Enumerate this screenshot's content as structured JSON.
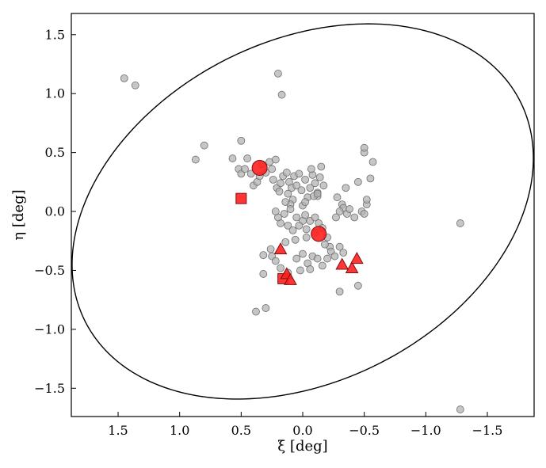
{
  "chart_data": {
    "type": "scatter",
    "title": "",
    "xlabel": "ξ [deg]",
    "ylabel": "η [deg]",
    "xlim": [
      1.88,
      -1.88
    ],
    "ylim": [
      -1.74,
      1.68
    ],
    "x_inverted": true,
    "grid": false,
    "x_ticks": [
      1.5,
      1.0,
      0.5,
      0.0,
      -0.5,
      -1.0,
      -1.5
    ],
    "x_tick_labels": [
      "1.5",
      "1.0",
      "0.5",
      "0.0",
      "−0.5",
      "−1.0",
      "−1.5"
    ],
    "y_ticks": [
      1.5,
      1.0,
      0.5,
      0.0,
      -0.5,
      -1.0,
      -1.5
    ],
    "y_tick_labels": [
      "1.5",
      "1.0",
      "0.5",
      "0.0",
      "−0.5",
      "−1.0",
      "−1.5"
    ],
    "colors": {
      "gray_points": "#b3b3b3",
      "red_points": "#ff2020",
      "ellipse": "#000000"
    },
    "ellipse": {
      "cx": 0.0,
      "cy": 0.0,
      "semi_major": 2.0,
      "semi_minor": 1.43,
      "angle_deg": -30.0
    },
    "series": [
      {
        "marker": "circle-gray",
        "points": [
          [
            1.45,
            1.13
          ],
          [
            1.36,
            1.07
          ],
          [
            0.2,
            1.17
          ],
          [
            0.17,
            0.99
          ],
          [
            0.87,
            0.44
          ],
          [
            0.8,
            0.56
          ],
          [
            0.57,
            0.45
          ],
          [
            0.5,
            0.6
          ],
          [
            0.52,
            0.36
          ],
          [
            0.5,
            0.32
          ],
          [
            0.47,
            0.36
          ],
          [
            0.45,
            0.45
          ],
          [
            0.42,
            0.32
          ],
          [
            0.4,
            0.22
          ],
          [
            0.37,
            0.25
          ],
          [
            0.35,
            0.3
          ],
          [
            0.33,
            0.4
          ],
          [
            0.3,
            0.33
          ],
          [
            0.27,
            0.42
          ],
          [
            0.25,
            0.36
          ],
          [
            0.22,
            0.44
          ],
          [
            0.24,
            0.27
          ],
          [
            0.21,
            0.2
          ],
          [
            0.18,
            0.24
          ],
          [
            0.16,
            0.3
          ],
          [
            0.19,
            0.17
          ],
          [
            0.13,
            0.33
          ],
          [
            0.11,
            0.25
          ],
          [
            0.09,
            0.2
          ],
          [
            0.12,
            0.15
          ],
          [
            0.07,
            0.3
          ],
          [
            0.05,
            0.22
          ],
          [
            0.03,
            0.32
          ],
          [
            0.01,
            0.18
          ],
          [
            -0.02,
            0.27
          ],
          [
            -0.04,
            0.12
          ],
          [
            -0.06,
            0.2
          ],
          [
            -0.08,
            0.31
          ],
          [
            -0.1,
            0.24
          ],
          [
            -0.12,
            0.16
          ],
          [
            -0.14,
            0.29
          ],
          [
            -0.07,
            0.36
          ],
          [
            -0.15,
            0.38
          ],
          [
            -0.17,
            0.22
          ],
          [
            0.08,
            0.1
          ],
          [
            0.0,
            0.05
          ],
          [
            -0.02,
            0.08
          ],
          [
            0.1,
            0.06
          ],
          [
            0.14,
            0.08
          ],
          [
            0.15,
            -0.02
          ],
          [
            0.1,
            0.02
          ],
          [
            0.05,
            -0.05
          ],
          [
            0.0,
            -0.08
          ],
          [
            -0.02,
            -0.03
          ],
          [
            -0.06,
            -0.08
          ],
          [
            -0.1,
            -0.05
          ],
          [
            0.12,
            -0.12
          ],
          [
            0.08,
            -0.16
          ],
          [
            0.03,
            -0.12
          ],
          [
            -0.03,
            -0.15
          ],
          [
            0.18,
            -0.1
          ],
          [
            0.2,
            -0.05
          ],
          [
            0.22,
            0.0
          ],
          [
            -0.13,
            -0.1
          ],
          [
            -0.16,
            -0.14
          ],
          [
            -0.2,
            -0.22
          ],
          [
            -0.22,
            -0.3
          ],
          [
            -0.18,
            -0.28
          ],
          [
            -0.12,
            0.13
          ],
          [
            -0.09,
            0.13
          ],
          [
            -0.1,
            -0.18
          ],
          [
            -0.03,
            -0.22
          ],
          [
            0.06,
            -0.24
          ],
          [
            0.14,
            -0.26
          ],
          [
            0.25,
            -0.38
          ],
          [
            0.22,
            -0.42
          ],
          [
            0.18,
            -0.48
          ],
          [
            0.12,
            -0.52
          ],
          [
            0.05,
            -0.4
          ],
          [
            0.0,
            -0.36
          ],
          [
            -0.04,
            -0.44
          ],
          [
            -0.08,
            -0.38
          ],
          [
            -0.12,
            -0.4
          ],
          [
            -0.16,
            -0.46
          ],
          [
            -0.2,
            -0.4
          ],
          [
            -0.23,
            -0.34
          ],
          [
            -0.26,
            -0.38
          ],
          [
            -0.3,
            -0.3
          ],
          [
            -0.33,
            -0.35
          ],
          [
            -0.06,
            -0.49
          ],
          [
            0.02,
            -0.5
          ],
          [
            0.32,
            -0.37
          ],
          [
            0.26,
            -0.32
          ],
          [
            -0.12,
            0.15
          ],
          [
            -0.28,
            0.12
          ],
          [
            -0.32,
            0.06
          ],
          [
            -0.33,
            0.03
          ],
          [
            -0.35,
            0.2
          ],
          [
            -0.36,
            -0.02
          ],
          [
            -0.3,
            0.0
          ],
          [
            -0.27,
            -0.05
          ],
          [
            -0.38,
            0.02
          ],
          [
            -0.42,
            -0.05
          ],
          [
            -0.45,
            0.25
          ],
          [
            -0.48,
            0.0
          ],
          [
            -0.5,
            -0.02
          ],
          [
            -0.52,
            0.06
          ],
          [
            -0.52,
            0.1
          ],
          [
            -0.5,
            0.5
          ],
          [
            -0.5,
            0.54
          ],
          [
            -0.55,
            0.28
          ],
          [
            -0.57,
            0.42
          ],
          [
            -0.3,
            -0.68
          ],
          [
            -0.45,
            -0.63
          ],
          [
            0.38,
            -0.85
          ],
          [
            0.3,
            -0.82
          ],
          [
            0.32,
            -0.53
          ],
          [
            -1.28,
            -0.1
          ],
          [
            -1.28,
            -1.68
          ]
        ]
      },
      {
        "marker": "circle-red",
        "points": [
          [
            0.35,
            0.37
          ],
          [
            -0.13,
            -0.19
          ]
        ]
      },
      {
        "marker": "square-red",
        "points": [
          [
            0.5,
            0.11
          ],
          [
            0.16,
            -0.57
          ]
        ]
      },
      {
        "marker": "triangle-red",
        "points": [
          [
            0.18,
            -0.32
          ],
          [
            0.13,
            -0.53
          ],
          [
            0.1,
            -0.58
          ],
          [
            -0.32,
            -0.45
          ],
          [
            -0.4,
            -0.48
          ],
          [
            -0.44,
            -0.4
          ]
        ]
      }
    ]
  }
}
